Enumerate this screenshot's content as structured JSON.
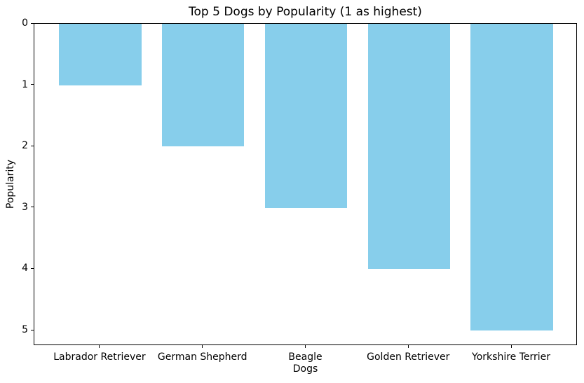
{
  "figure": {
    "background_color": "#ffffff",
    "text_color": "#000000",
    "spine_color": "#000000"
  },
  "chart_data": {
    "type": "bar",
    "title": "Top 5 Dogs by Popularity (1 as highest)",
    "xlabel": "Dogs",
    "ylabel": "Popularity",
    "categories": [
      "Labrador Retriever",
      "German Shepherd",
      "Beagle",
      "Golden Retriever",
      "Yorkshire Terrier"
    ],
    "values": [
      1,
      2,
      3,
      4,
      5
    ],
    "bar_color": "#87CEEB",
    "bar_width_fraction": 0.8,
    "y_ticks": [
      0,
      1,
      2,
      3,
      4,
      5
    ],
    "ylim": [
      0,
      5.25
    ],
    "y_axis_inverted": true,
    "bars_hang_from_top": true,
    "x_units_total": 5.28,
    "x_units_offset": 0.64,
    "grid": false,
    "legend": false
  }
}
